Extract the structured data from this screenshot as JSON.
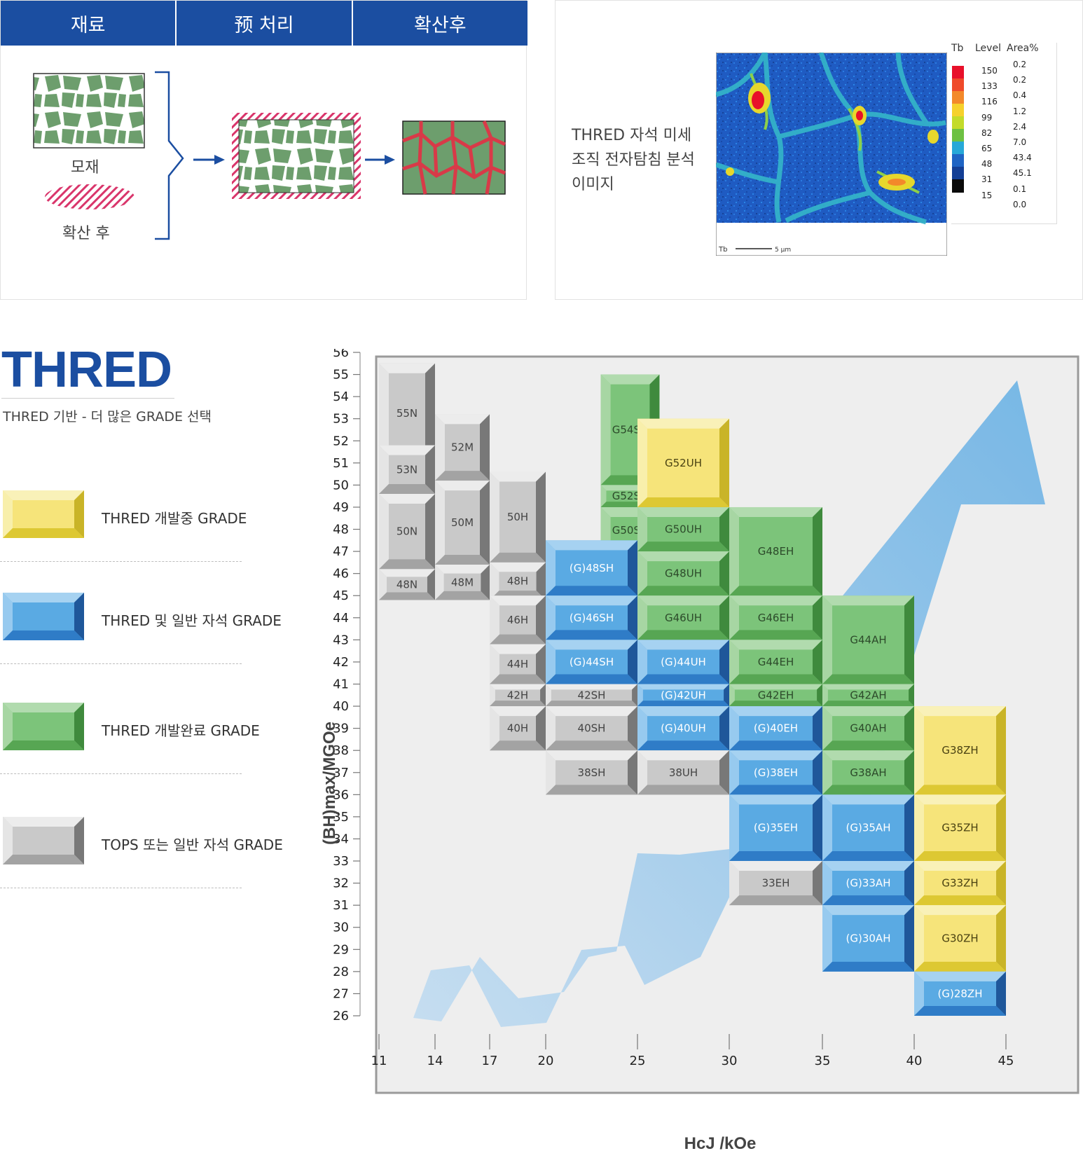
{
  "process_panel": {
    "headers": [
      "재료",
      "预 처리",
      "확산후"
    ],
    "base_label": "모재",
    "diffusion_label": "확산 후"
  },
  "sem_panel": {
    "caption_lines": [
      "THRED 자석 미세",
      "조직 전자탐침 분석",
      "이미지"
    ],
    "scale_headers": [
      "Tb",
      "Level",
      "Area%"
    ],
    "levels": [
      "150",
      "133",
      "116",
      "99",
      "82",
      "65",
      "48",
      "31",
      "15"
    ],
    "areas": [
      "0.2",
      "0.2",
      "0.4",
      "1.2",
      "2.4",
      "7.0",
      "43.4",
      "45.1",
      "0.1",
      "0.0"
    ],
    "level_colors": [
      "#e8102a",
      "#ef4a2a",
      "#f3892a",
      "#f6d12c",
      "#c3db2a",
      "#6dc143",
      "#27a8d8",
      "#1f64c4",
      "#143f95",
      "#0a0a0a"
    ],
    "image_footer_label": "Tb",
    "scale_bar_label": "5 µm"
  },
  "legend": {
    "title": "THRED",
    "subtitle": "THRED 기반 - 더 많은 GRADE 선택",
    "items": [
      {
        "label": "THRED 개발중 GRADE",
        "color": "yellow"
      },
      {
        "label": "THRED 및 일반 자석 GRADE",
        "color": "blue"
      },
      {
        "label": "THRED 개발완료 GRADE",
        "color": "green"
      },
      {
        "label": "TOPS 또는 일반 자석 GRADE",
        "color": "gray"
      }
    ]
  },
  "colors": {
    "brand_blue": "#1b4ea1",
    "yellow": [
      "#f6e47a",
      "#f9f1b8",
      "#c9b428",
      "#ddc833"
    ],
    "blue": [
      "#5aaae3",
      "#a6d2f1",
      "#1f579a",
      "#2f7cc7"
    ],
    "green": [
      "#7cc47a",
      "#b1dbae",
      "#3f8a3d",
      "#57a653"
    ],
    "gray": [
      "#c9c9c9",
      "#ececec",
      "#787878",
      "#a3a3a3"
    ]
  },
  "chart_data": {
    "type": "heatmap",
    "xlabel": "HcJ /kOe",
    "ylabel": "(BH)max/MGOe",
    "x_ticks": [
      11,
      14,
      17,
      20,
      25,
      30,
      35,
      40,
      45
    ],
    "y_range": [
      26,
      56
    ],
    "grades": [
      {
        "name": "55N",
        "kind": "gray",
        "x0": 11,
        "x1": 14,
        "y0": 51,
        "y1": 55.5
      },
      {
        "name": "53N",
        "kind": "gray",
        "x0": 11,
        "x1": 14,
        "y0": 49.6,
        "y1": 51.8
      },
      {
        "name": "50N",
        "kind": "gray",
        "x0": 11,
        "x1": 14,
        "y0": 46.2,
        "y1": 49.6
      },
      {
        "name": "48N",
        "kind": "gray",
        "x0": 11,
        "x1": 14,
        "y0": 44.8,
        "y1": 46.2
      },
      {
        "name": "52M",
        "kind": "gray",
        "x0": 14,
        "x1": 17,
        "y0": 50.2,
        "y1": 53.2
      },
      {
        "name": "50M",
        "kind": "gray",
        "x0": 14,
        "x1": 17,
        "y0": 46.4,
        "y1": 50.2
      },
      {
        "name": "48M",
        "kind": "gray",
        "x0": 14,
        "x1": 17,
        "y0": 44.8,
        "y1": 46.4
      },
      {
        "name": "50H",
        "kind": "gray",
        "x0": 17,
        "x1": 20,
        "y0": 46.5,
        "y1": 50.6
      },
      {
        "name": "48H",
        "kind": "gray",
        "x0": 17,
        "x1": 20,
        "y0": 44.8,
        "y1": 46.5
      },
      {
        "name": "46H",
        "kind": "gray",
        "x0": 17,
        "x1": 20,
        "y0": 42.8,
        "y1": 45
      },
      {
        "name": "44H",
        "kind": "gray",
        "x0": 17,
        "x1": 20,
        "y0": 41,
        "y1": 42.8
      },
      {
        "name": "42H",
        "kind": "gray",
        "x0": 17,
        "x1": 20,
        "y0": 40,
        "y1": 41
      },
      {
        "name": "40H",
        "kind": "gray",
        "x0": 17,
        "x1": 20,
        "y0": 38,
        "y1": 40
      },
      {
        "name": "G54SH",
        "kind": "green",
        "x0": 23,
        "x1": 26.2,
        "y0": 50,
        "y1": 55
      },
      {
        "name": "G52SH",
        "kind": "green",
        "x0": 23,
        "x1": 26.2,
        "y0": 49,
        "y1": 50
      },
      {
        "name": "G50SH",
        "kind": "green",
        "x0": 23,
        "x1": 26.2,
        "y0": 46.9,
        "y1": 49
      },
      {
        "name": "(G)48SH",
        "kind": "blue",
        "x0": 20,
        "x1": 25,
        "y0": 45,
        "y1": 47.5
      },
      {
        "name": "(G)46SH",
        "kind": "blue",
        "x0": 20,
        "x1": 25,
        "y0": 43,
        "y1": 45
      },
      {
        "name": "(G)44SH",
        "kind": "blue",
        "x0": 20,
        "x1": 25,
        "y0": 41,
        "y1": 43
      },
      {
        "name": "42SH",
        "kind": "gray",
        "x0": 20,
        "x1": 25,
        "y0": 40,
        "y1": 41
      },
      {
        "name": "40SH",
        "kind": "gray",
        "x0": 20,
        "x1": 25,
        "y0": 38,
        "y1": 40
      },
      {
        "name": "38SH",
        "kind": "gray",
        "x0": 20,
        "x1": 25,
        "y0": 36,
        "y1": 38
      },
      {
        "name": "G52UH",
        "kind": "yellow",
        "x0": 25,
        "x1": 30,
        "y0": 49,
        "y1": 53
      },
      {
        "name": "G50UH",
        "kind": "green",
        "x0": 25,
        "x1": 30,
        "y0": 47,
        "y1": 49
      },
      {
        "name": "G48UH",
        "kind": "green",
        "x0": 25,
        "x1": 30,
        "y0": 45,
        "y1": 47
      },
      {
        "name": "G46UH",
        "kind": "green",
        "x0": 25,
        "x1": 30,
        "y0": 43,
        "y1": 45
      },
      {
        "name": "(G)44UH",
        "kind": "blue",
        "x0": 25,
        "x1": 30,
        "y0": 41,
        "y1": 43
      },
      {
        "name": "(G)42UH",
        "kind": "blue",
        "x0": 25,
        "x1": 30,
        "y0": 40,
        "y1": 41
      },
      {
        "name": "(G)40UH",
        "kind": "blue",
        "x0": 25,
        "x1": 30,
        "y0": 38,
        "y1": 40
      },
      {
        "name": "38UH",
        "kind": "gray",
        "x0": 25,
        "x1": 30,
        "y0": 36,
        "y1": 38
      },
      {
        "name": "G48EH",
        "kind": "green",
        "x0": 30,
        "x1": 35,
        "y0": 45,
        "y1": 49
      },
      {
        "name": "G46EH",
        "kind": "green",
        "x0": 30,
        "x1": 35,
        "y0": 43,
        "y1": 45
      },
      {
        "name": "G44EH",
        "kind": "green",
        "x0": 30,
        "x1": 35,
        "y0": 41,
        "y1": 43
      },
      {
        "name": "G42EH",
        "kind": "green",
        "x0": 30,
        "x1": 35,
        "y0": 40,
        "y1": 41
      },
      {
        "name": "(G)40EH",
        "kind": "blue",
        "x0": 30,
        "x1": 35,
        "y0": 38,
        "y1": 40
      },
      {
        "name": "(G)38EH",
        "kind": "blue",
        "x0": 30,
        "x1": 35,
        "y0": 36,
        "y1": 38
      },
      {
        "name": "(G)35EH",
        "kind": "blue",
        "x0": 30,
        "x1": 35,
        "y0": 33,
        "y1": 36
      },
      {
        "name": "33EH",
        "kind": "gray",
        "x0": 30,
        "x1": 35,
        "y0": 31,
        "y1": 33
      },
      {
        "name": "G44AH",
        "kind": "green",
        "x0": 35,
        "x1": 40,
        "y0": 41,
        "y1": 45
      },
      {
        "name": "G42AH",
        "kind": "green",
        "x0": 35,
        "x1": 40,
        "y0": 40,
        "y1": 41
      },
      {
        "name": "G40AH",
        "kind": "green",
        "x0": 35,
        "x1": 40,
        "y0": 38,
        "y1": 40
      },
      {
        "name": "G38AH",
        "kind": "green",
        "x0": 35,
        "x1": 40,
        "y0": 36,
        "y1": 38
      },
      {
        "name": "(G)35AH",
        "kind": "blue",
        "x0": 35,
        "x1": 40,
        "y0": 33,
        "y1": 36
      },
      {
        "name": "(G)33AH",
        "kind": "blue",
        "x0": 35,
        "x1": 40,
        "y0": 31,
        "y1": 33
      },
      {
        "name": "(G)30AH",
        "kind": "blue",
        "x0": 35,
        "x1": 40,
        "y0": 28,
        "y1": 31
      },
      {
        "name": "G38ZH",
        "kind": "yellow",
        "x0": 40,
        "x1": 45,
        "y0": 36,
        "y1": 40
      },
      {
        "name": "G35ZH",
        "kind": "yellow",
        "x0": 40,
        "x1": 45,
        "y0": 33,
        "y1": 36
      },
      {
        "name": "G33ZH",
        "kind": "yellow",
        "x0": 40,
        "x1": 45,
        "y0": 31,
        "y1": 33
      },
      {
        "name": "G30ZH",
        "kind": "yellow",
        "x0": 40,
        "x1": 45,
        "y0": 28,
        "y1": 31
      },
      {
        "name": "(G)28ZH",
        "kind": "blue",
        "x0": 40,
        "x1": 45,
        "y0": 26,
        "y1": 28
      }
    ]
  }
}
